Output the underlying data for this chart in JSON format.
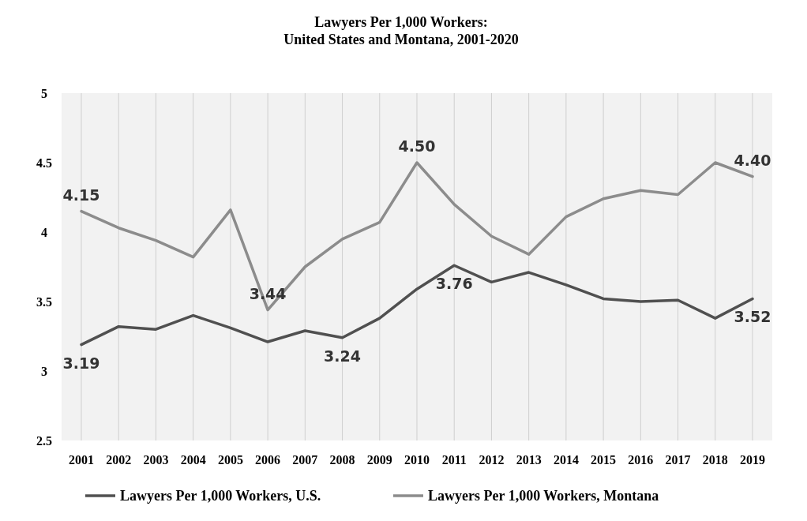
{
  "chart_data": {
    "type": "line",
    "title": "Lawyers Per 1,000 Workers:\nUnited States and Montana, 2001-2020",
    "categories": [
      "2001",
      "2002",
      "2003",
      "2004",
      "2005",
      "2006",
      "2007",
      "2008",
      "2009",
      "2010",
      "2011",
      "2012",
      "2013",
      "2014",
      "2015",
      "2016",
      "2017",
      "2018",
      "2019"
    ],
    "series": [
      {
        "name": "Lawyers Per 1,000 Workers, U.S.",
        "color": "#505050",
        "values": [
          3.19,
          3.32,
          3.3,
          3.4,
          3.31,
          3.21,
          3.29,
          3.24,
          3.38,
          3.59,
          3.76,
          3.64,
          3.71,
          3.62,
          3.52,
          3.5,
          3.51,
          3.38,
          3.52
        ],
        "value_labels": [
          "3.19",
          null,
          null,
          null,
          null,
          null,
          null,
          "3.24",
          null,
          null,
          "3.76",
          null,
          null,
          null,
          null,
          null,
          null,
          null,
          "3.52"
        ]
      },
      {
        "name": "Lawyers Per 1,000 Workers, Montana",
        "color": "#8c8c8c",
        "values": [
          4.15,
          4.03,
          3.94,
          3.82,
          4.16,
          3.44,
          3.75,
          3.95,
          4.07,
          4.5,
          4.2,
          3.97,
          3.84,
          4.11,
          4.24,
          4.3,
          4.27,
          4.5,
          4.4
        ],
        "value_labels": [
          "4.15",
          null,
          null,
          null,
          null,
          "3.44",
          null,
          null,
          null,
          "4.50",
          null,
          null,
          null,
          null,
          null,
          null,
          null,
          null,
          "4.40"
        ]
      }
    ],
    "ylim": [
      2.5,
      5
    ],
    "yticks": [
      2.5,
      3,
      3.5,
      4,
      4.5,
      5
    ],
    "grid": "x",
    "legend": "bottom",
    "marker": "none",
    "line_style": "solid"
  }
}
